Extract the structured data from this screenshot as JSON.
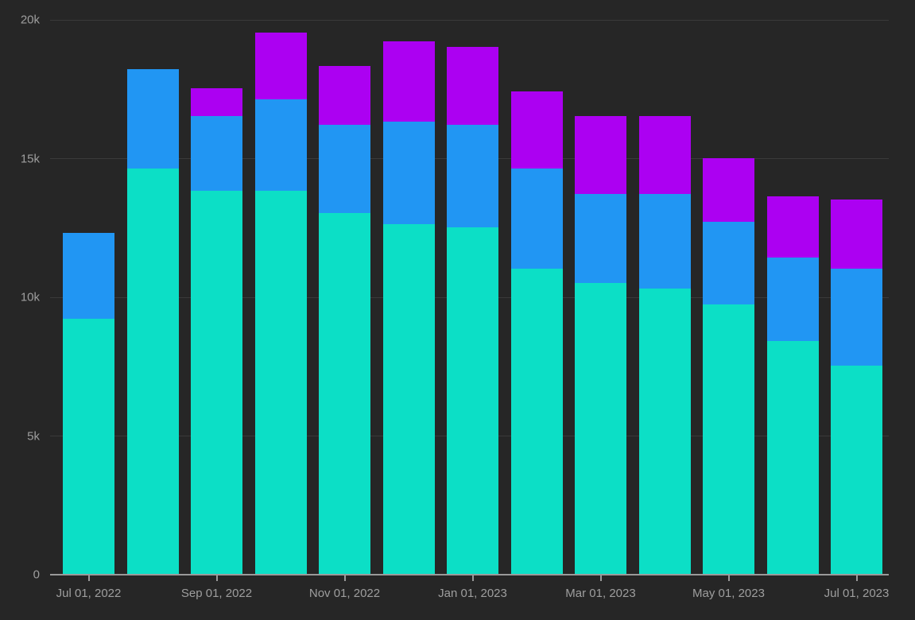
{
  "theme": {
    "background": "#262626",
    "gridline_color": "#3a3a3a",
    "axis_line_color": "#9a9a9a",
    "tick_label_color": "#9e9e9e"
  },
  "chart_data": {
    "type": "bar",
    "stacked": true,
    "title": "",
    "xlabel": "",
    "ylabel": "",
    "grid": true,
    "legend_position": "none",
    "x": [
      "2022-07",
      "2022-08",
      "2022-09",
      "2022-10",
      "2022-11",
      "2022-12",
      "2023-01",
      "2023-02",
      "2023-03",
      "2023-04",
      "2023-05",
      "2023-06",
      "2023-07"
    ],
    "x_tick_labels": [
      "Jul 01, 2022",
      "Sep 01, 2022",
      "Nov 01, 2022",
      "Jan 01, 2023",
      "Mar 01, 2023",
      "May 01, 2023",
      "Jul 01, 2023"
    ],
    "x_tick_bar_indices": [
      0,
      2,
      4,
      6,
      8,
      10,
      12
    ],
    "y_tick_labels": [
      "0",
      "5k",
      "10k",
      "15k",
      "20k"
    ],
    "y_tick_values": [
      0,
      5000,
      10000,
      15000,
      20000
    ],
    "ylim": [
      0,
      20000
    ],
    "series": [
      {
        "name": "teal",
        "color": "#0cdfc6",
        "values": [
          9200,
          14600,
          13800,
          13800,
          13000,
          12600,
          12500,
          11000,
          10500,
          10300,
          9700,
          8400,
          7500
        ]
      },
      {
        "name": "blue",
        "color": "#2196f3",
        "values": [
          3100,
          3600,
          2700,
          3300,
          3200,
          3700,
          3700,
          3600,
          3200,
          3400,
          3000,
          3000,
          3500
        ]
      },
      {
        "name": "purple",
        "color": "#ac00f2",
        "values": [
          0,
          0,
          1000,
          2400,
          2100,
          2900,
          2800,
          2800,
          2800,
          2800,
          2300,
          2200,
          2500
        ]
      }
    ],
    "totals": [
      12300,
      18200,
      17500,
      19500,
      18300,
      19200,
      19000,
      17400,
      16500,
      16500,
      15000,
      13600,
      13500
    ]
  }
}
